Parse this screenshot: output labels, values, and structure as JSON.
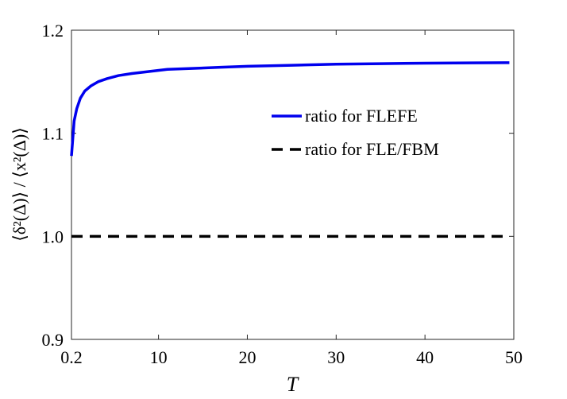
{
  "chart_data": {
    "type": "line",
    "title": "",
    "xlabel": "T",
    "ylabel": "⟨δ²(Δ)⟩ / ⟨x²(Δ)⟩",
    "xlim": [
      0.2,
      50
    ],
    "ylim": [
      0.9,
      1.2
    ],
    "x_ticks": [
      {
        "value": 0.2,
        "label": "0.2"
      },
      {
        "value": 10,
        "label": "10"
      },
      {
        "value": 20,
        "label": "20"
      },
      {
        "value": 30,
        "label": "30"
      },
      {
        "value": 40,
        "label": "40"
      },
      {
        "value": 50,
        "label": "50"
      }
    ],
    "y_ticks": [
      {
        "value": 0.9,
        "label": "0.9"
      },
      {
        "value": 1.0,
        "label": "1.0"
      },
      {
        "value": 1.1,
        "label": "1.1"
      },
      {
        "value": 1.2,
        "label": "1.2"
      }
    ],
    "grid": false,
    "legend_position": "center-right",
    "series": [
      {
        "name": "ratio for FLEFE",
        "color": "#0000ee",
        "style": "solid",
        "x": [
          0.2,
          0.5,
          0.8,
          1.2,
          1.7,
          2.4,
          3.2,
          4.2,
          5.5,
          7,
          9,
          11,
          14,
          17,
          20,
          25,
          30,
          35,
          40,
          45,
          49.5
        ],
        "y": [
          1.078,
          1.112,
          1.124,
          1.134,
          1.141,
          1.146,
          1.15,
          1.153,
          1.156,
          1.158,
          1.16,
          1.162,
          1.163,
          1.164,
          1.165,
          1.166,
          1.167,
          1.1675,
          1.168,
          1.1683,
          1.1685
        ]
      },
      {
        "name": "ratio for FLE/FBM",
        "color": "#000000",
        "style": "dashed",
        "x": [
          0.2,
          49.5
        ],
        "y": [
          1.0,
          1.0
        ]
      }
    ]
  }
}
